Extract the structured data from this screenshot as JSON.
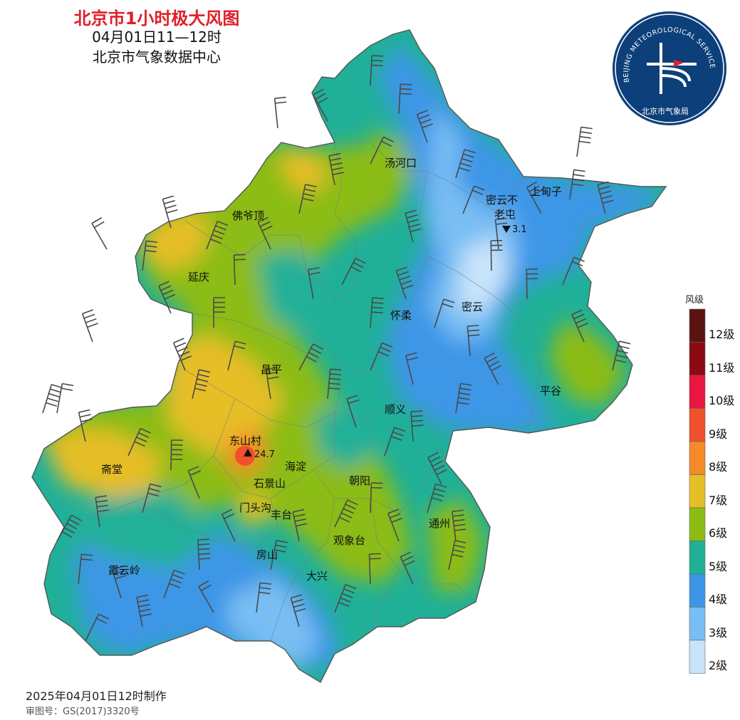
{
  "title": "北京市1小时极大风图",
  "time_range": "04月01日11—12时",
  "organization": "北京市气象数据中心",
  "legend": {
    "title": "风级",
    "levels": [
      {
        "label": "12级",
        "color": "#5a1410"
      },
      {
        "label": "11级",
        "color": "#8c0a14"
      },
      {
        "label": "10级",
        "color": "#e81640"
      },
      {
        "label": "9级",
        "color": "#f0502c"
      },
      {
        "label": "8级",
        "color": "#f58a28"
      },
      {
        "label": "7级",
        "color": "#e6be28"
      },
      {
        "label": "6级",
        "color": "#8cbc14"
      },
      {
        "label": "5级",
        "color": "#20b098"
      },
      {
        "label": "4级",
        "color": "#3c96e6"
      },
      {
        "label": "3级",
        "color": "#78bef4"
      },
      {
        "label": "2级",
        "color": "#c8e4fa"
      }
    ]
  },
  "places": [
    "汤河口",
    "上甸子",
    "密云不",
    "老屯",
    "佛爷顶",
    "延庆",
    "怀柔",
    "密云",
    "昌平",
    "平谷",
    "顺义",
    "东山村",
    "海淀",
    "斋堂",
    "朝阳",
    "石景山",
    "门头沟",
    "丰台",
    "通州",
    "观象台",
    "房山",
    "霞云岭",
    "大兴"
  ],
  "stations": {
    "max": {
      "name": "东山村",
      "value": "24.7"
    },
    "min": {
      "name": "密云不老屯",
      "value": "3.1"
    }
  },
  "logo": {
    "text_en": "BEIJING METEOROLOGICAL SERVICE",
    "text_cn": "北京市气象局"
  },
  "footer": {
    "date": "2025年04月01日12时制作",
    "code": "审图号：GS(2017)3320号"
  }
}
